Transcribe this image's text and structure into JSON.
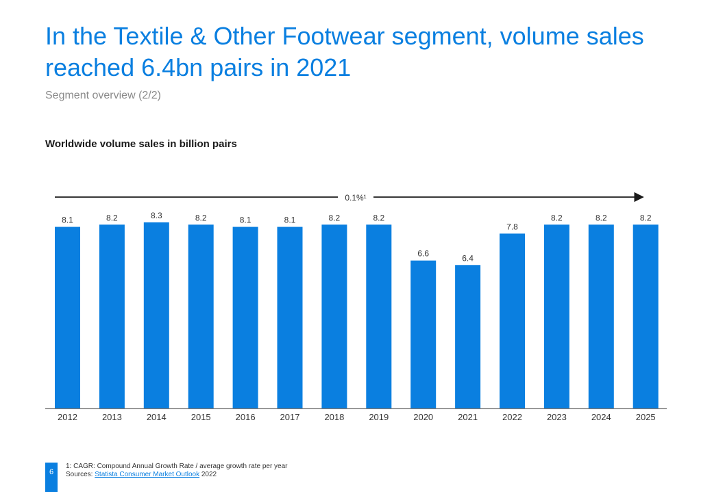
{
  "header": {
    "title": "In the Textile & Other Footwear segment, volume sales reached 6.4bn pairs in 2021",
    "subtitle": "Segment overview (2/2)"
  },
  "chart_heading": "Worldwide volume sales in billion pairs",
  "chart_data": {
    "type": "bar",
    "title": "Worldwide volume sales in billion pairs",
    "xlabel": "",
    "ylabel": "",
    "categories": [
      "2012",
      "2013",
      "2014",
      "2015",
      "2016",
      "2017",
      "2018",
      "2019",
      "2020",
      "2021",
      "2022",
      "2023",
      "2024",
      "2025"
    ],
    "values": [
      8.1,
      8.2,
      8.3,
      8.2,
      8.1,
      8.1,
      8.2,
      8.2,
      6.6,
      6.4,
      7.8,
      8.2,
      8.2,
      8.2
    ],
    "value_labels": [
      "8.1",
      "8.2",
      "8.3",
      "8.2",
      "8.1",
      "8.1",
      "8.2",
      "8.2",
      "6.6",
      "6.4",
      "7.8",
      "8.2",
      "8.2",
      "8.2"
    ],
    "ylim": [
      0,
      8.3
    ],
    "grid": false,
    "legend": "none",
    "annotation": "0.1%¹",
    "bar_color": "#0a7fe0"
  },
  "footer": {
    "page_number": "6",
    "footnote": "1: CAGR: Compound Annual Growth Rate / average growth rate per year",
    "sources_prefix": "Sources: ",
    "sources_link": "Statista Consumer Market Outlook",
    "sources_suffix": " 2022"
  },
  "colors": {
    "accent": "#0a7fe0",
    "text": "#1a1a1a",
    "muted": "#8a8a8a"
  }
}
